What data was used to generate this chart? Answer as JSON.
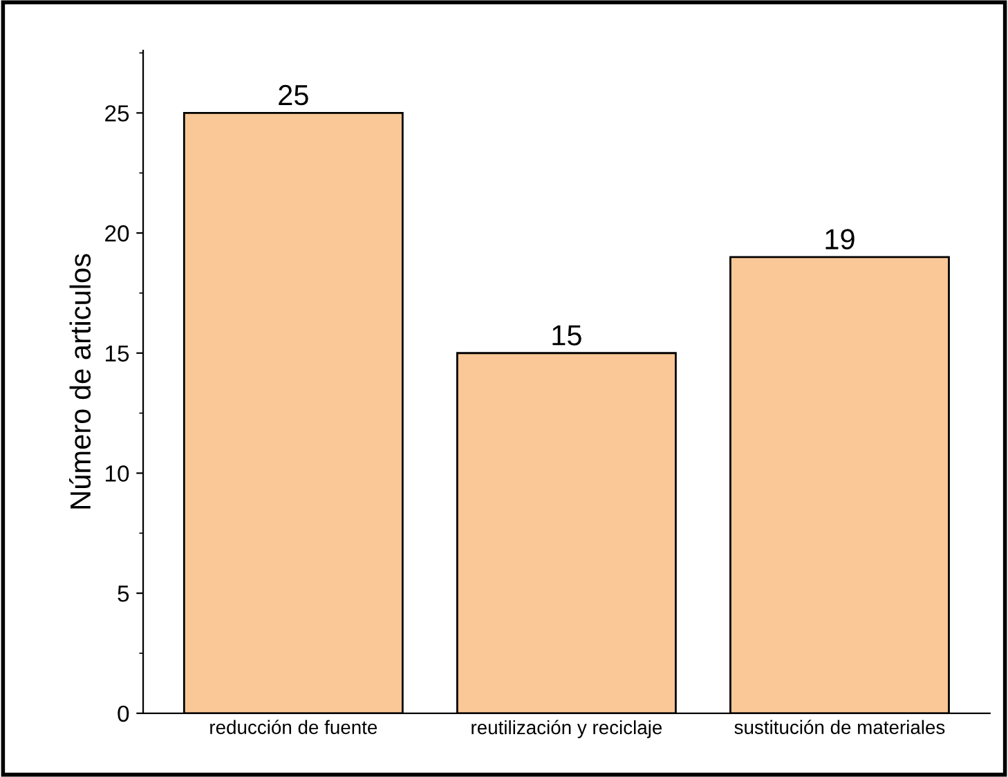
{
  "chart_data": {
    "type": "bar",
    "ylabel": "Número de articulos",
    "categories": [
      "reducción de fuente",
      "reutilización y reciclaje",
      "sustitución de materiales"
    ],
    "values": [
      25,
      15,
      19
    ],
    "color": "#fac896",
    "data_labels": true,
    "ylim": [
      0,
      27.6
    ],
    "yticks": [
      0,
      5,
      10,
      15,
      20,
      25
    ],
    "grid": false,
    "legend": false
  }
}
